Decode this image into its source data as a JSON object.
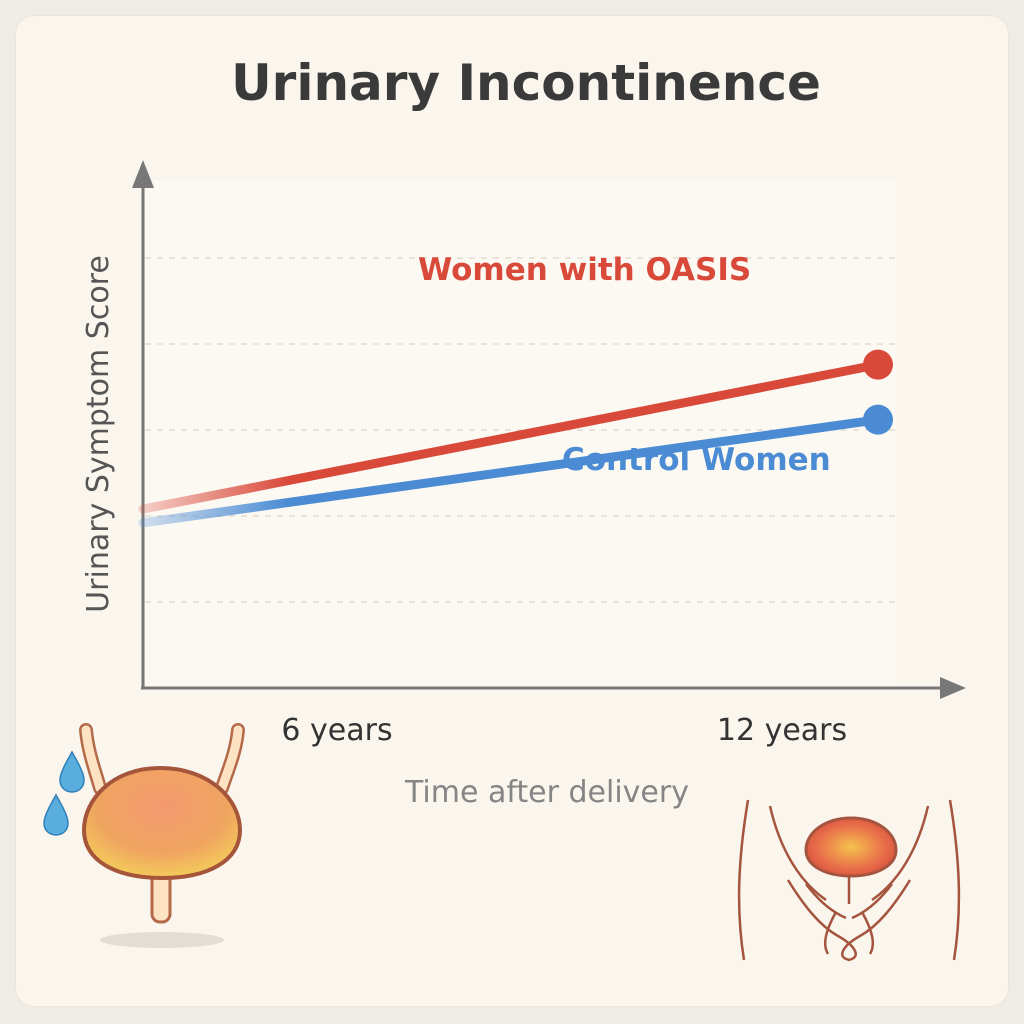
{
  "chart_data": {
    "type": "line",
    "title": "Urinary Incontinence",
    "xlabel": "Time after delivery",
    "ylabel": "Urinary Symptom Score",
    "categories": [
      "6 years",
      "12 years"
    ],
    "x": [
      0,
      6,
      12
    ],
    "ylim": [
      0,
      10
    ],
    "grid": true,
    "series": [
      {
        "name": "Women with OASIS",
        "x": [
          0,
          12
        ],
        "values": [
          2.6,
          4.7
        ],
        "color": "#d9493a"
      },
      {
        "name": "Control Women",
        "x": [
          0,
          12
        ],
        "values": [
          2.4,
          3.9
        ],
        "color": "#4a8bd4"
      }
    ]
  },
  "colors": {
    "background": "#faf6ee",
    "axis": "#777777",
    "grid": "#e2ddd4"
  },
  "icons": [
    "bladder-icon",
    "pelvic-anatomy-icon",
    "water-drop-icon"
  ]
}
